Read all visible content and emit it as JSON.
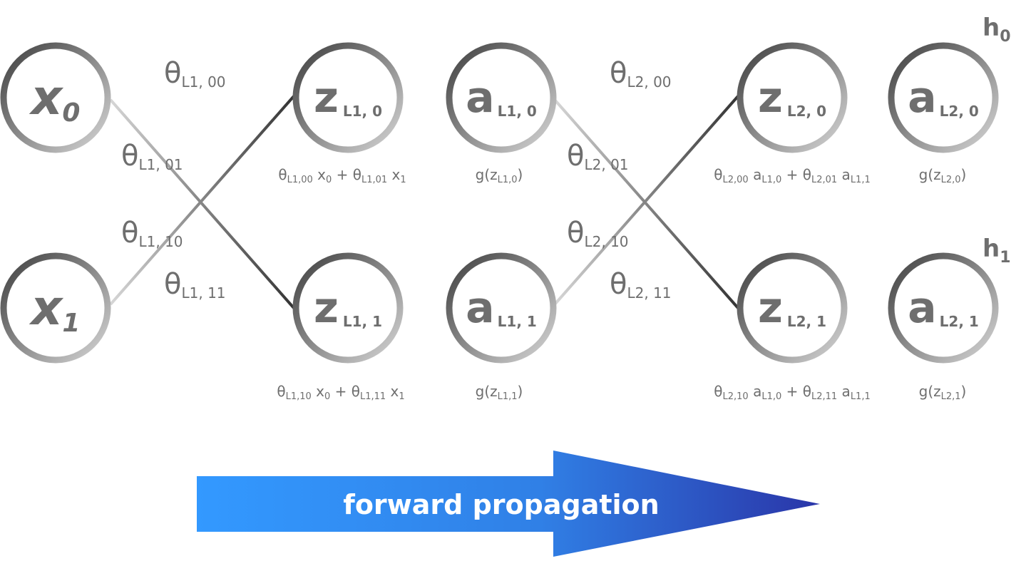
{
  "nodes": {
    "x0": {
      "main": "x",
      "sub": "0"
    },
    "x1": {
      "main": "x",
      "sub": "1"
    },
    "z_L1_0": {
      "main": "z",
      "sub": "L1, 0"
    },
    "z_L1_1": {
      "main": "z",
      "sub": "L1, 1"
    },
    "a_L1_0": {
      "main": "a",
      "sub": "L1, 0"
    },
    "a_L1_1": {
      "main": "a",
      "sub": "L1, 1"
    },
    "z_L2_0": {
      "main": "z",
      "sub": "L2, 0"
    },
    "z_L2_1": {
      "main": "z",
      "sub": "L2, 1"
    },
    "a_L2_0": {
      "main": "a",
      "sub": "L2, 0"
    },
    "a_L2_1": {
      "main": "a",
      "sub": "L2, 1"
    }
  },
  "outputs": {
    "h0": {
      "main": "h",
      "sub": "0"
    },
    "h1": {
      "main": "h",
      "sub": "1"
    }
  },
  "weights": {
    "theta_L1_00": {
      "main": "θ",
      "sub": "L1, 00"
    },
    "theta_L1_01": {
      "main": "θ",
      "sub": "L1, 01"
    },
    "theta_L1_10": {
      "main": "θ",
      "sub": "L1, 10"
    },
    "theta_L1_11": {
      "main": "θ",
      "sub": "L1, 11"
    },
    "theta_L2_00": {
      "main": "θ",
      "sub": "L2, 00"
    },
    "theta_L2_01": {
      "main": "θ",
      "sub": "L2, 01"
    },
    "theta_L2_10": {
      "main": "θ",
      "sub": "L2, 10"
    },
    "theta_L2_11": {
      "main": "θ",
      "sub": "L2, 11"
    }
  },
  "formulas": {
    "z_L1_0": {
      "t1": "θ",
      "s1": "L1,00",
      "v1": " x",
      "vs1": "0",
      "plus": " + θ",
      "s2": "L1,01",
      "v2": " x",
      "vs2": "1"
    },
    "z_L1_1": {
      "t1": "θ",
      "s1": "L1,10",
      "v1": " x",
      "vs1": "0",
      "plus": " + θ",
      "s2": "L1,11",
      "v2": " x",
      "vs2": "1"
    },
    "z_L2_0": {
      "t1": "θ",
      "s1": "L2,00",
      "v1": " a",
      "vs1": "L1,0",
      "plus": " + θ",
      "s2": "L2,01",
      "v2": " a",
      "vs2": "L1,1"
    },
    "z_L2_1": {
      "t1": "θ",
      "s1": "L2,10",
      "v1": " a",
      "vs1": "L1,0",
      "plus": " + θ",
      "s2": "L2,11",
      "v2": " a",
      "vs2": "L1,1"
    },
    "a_L1_0": {
      "pre": "g(z",
      "sub": "L1,0",
      "post": ")"
    },
    "a_L1_1": {
      "pre": "g(z",
      "sub": "L1,1",
      "post": ")"
    },
    "a_L2_0": {
      "pre": "g(z",
      "sub": "L2,0",
      "post": ")"
    },
    "a_L2_1": {
      "pre": "g(z",
      "sub": "L2,1",
      "post": ")"
    }
  },
  "arrow": {
    "label": "forward propagation"
  },
  "colors": {
    "node_dark": "#4a4a4a",
    "node_light": "#d0d0d0",
    "text_gray": "#6e6e6e",
    "arrow_start": "#3399ff",
    "arrow_end": "#2a3ab0"
  }
}
